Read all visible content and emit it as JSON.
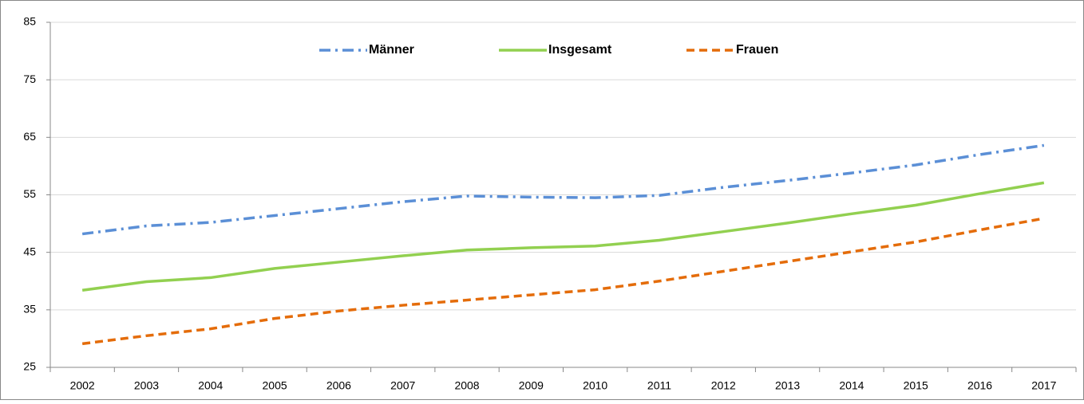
{
  "chart_data": {
    "type": "line",
    "categories": [
      "2002",
      "2003",
      "2004",
      "2005",
      "2006",
      "2007",
      "2008",
      "2009",
      "2010",
      "2011",
      "2012",
      "2013",
      "2014",
      "2015",
      "2016",
      "2017"
    ],
    "series": [
      {
        "name": "Männer",
        "color": "#5b8fd6",
        "dash": "dashdot",
        "values": [
          48.2,
          49.6,
          50.2,
          51.4,
          52.6,
          53.8,
          54.8,
          54.6,
          54.5,
          54.9,
          56.3,
          57.5,
          58.8,
          60.2,
          62.0,
          63.6
        ]
      },
      {
        "name": "Insgesamt",
        "color": "#92d050",
        "dash": "solid",
        "values": [
          38.4,
          39.9,
          40.6,
          42.2,
          43.3,
          44.4,
          45.4,
          45.8,
          46.1,
          47.1,
          48.6,
          50.1,
          51.7,
          53.2,
          55.2,
          57.1
        ]
      },
      {
        "name": "Frauen",
        "color": "#e46c0a",
        "dash": "dashed",
        "values": [
          29.1,
          30.5,
          31.7,
          33.5,
          34.8,
          35.8,
          36.7,
          37.6,
          38.5,
          40.0,
          41.7,
          43.4,
          45.1,
          46.8,
          48.9,
          50.9
        ]
      }
    ],
    "ylim": [
      25,
      85
    ],
    "yticks": [
      25,
      35,
      45,
      55,
      65,
      75,
      85
    ],
    "grid": true,
    "legend": "top"
  }
}
